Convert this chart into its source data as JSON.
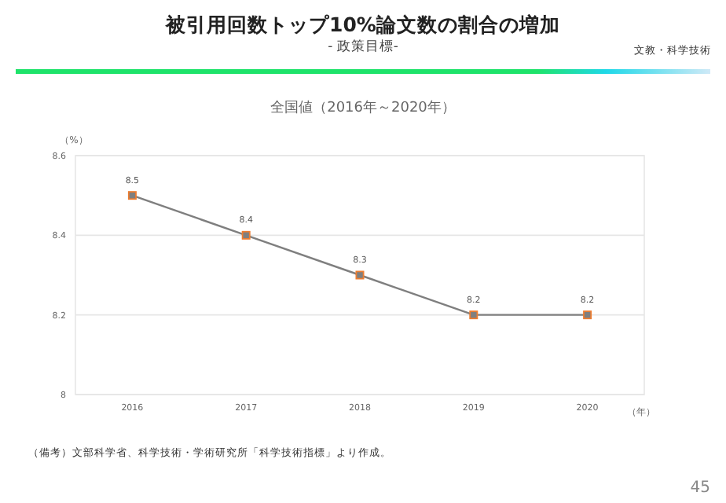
{
  "chart_data": {
    "type": "line",
    "title": "被引用回数トップ10%論文数の割合の増加",
    "subtitle": "- 政策目標-",
    "xlabel": "（年）",
    "ylabel": "（%）",
    "annotations": [
      "全国値（2016年～2020年）",
      "文教・科学技術",
      "（備考）文部科学省、科学技術・学術研究所「科学技術指標」より作成。",
      "45"
    ],
    "categories": [
      "2016",
      "2017",
      "2018",
      "2019",
      "2020"
    ],
    "series": [
      {
        "color": "#7f7f7f",
        "values": [
          8.5,
          8.4,
          8.3,
          8.2,
          8.2
        ]
      }
    ],
    "ylim": [
      8,
      8.6
    ],
    "yticks": [
      8,
      8.2,
      8.4,
      8.6
    ],
    "grid": "y",
    "marker": "square",
    "line_style": "solid",
    "data_labels": true
  }
}
